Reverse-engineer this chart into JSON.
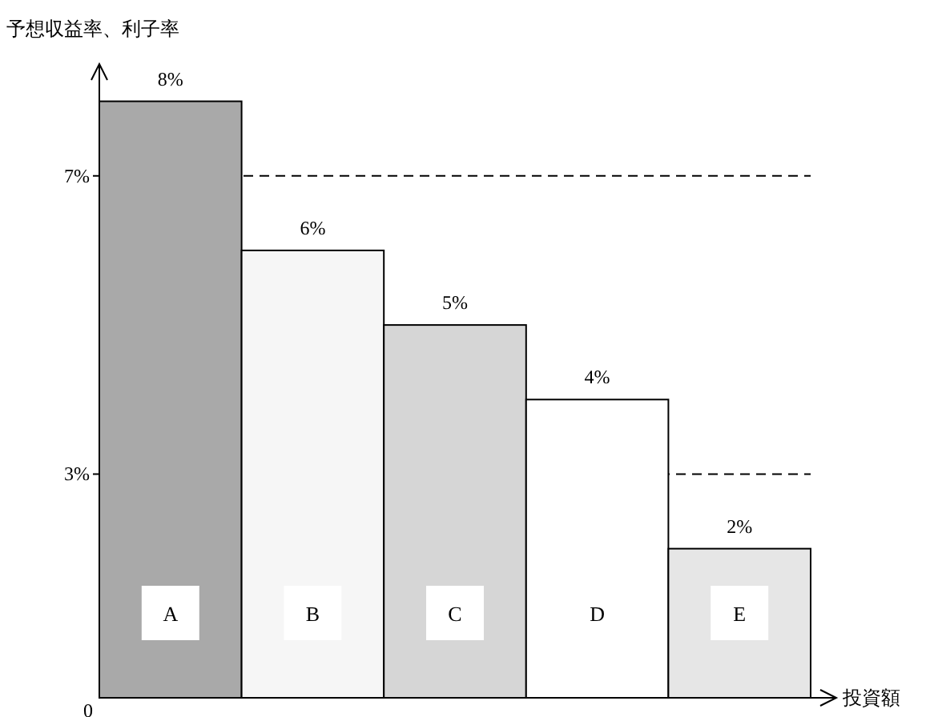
{
  "chart_data": {
    "type": "bar",
    "xlabel": "投資額",
    "ylabel": "予想収益率、利子率",
    "categories": [
      "A",
      "B",
      "C",
      "D",
      "E"
    ],
    "values": [
      8,
      6,
      5,
      4,
      2
    ],
    "colors": [
      "#a9a9a9",
      "#f6f6f6",
      "#d6d6d6",
      "#ffffff",
      "#e6e6e6"
    ],
    "value_labels": [
      "8%",
      "6%",
      "5%",
      "4%",
      "2%"
    ],
    "ylim": [
      0,
      8.5
    ],
    "yticks": [
      {
        "value": 0,
        "label": "0"
      },
      {
        "value": 3,
        "label": "3%"
      },
      {
        "value": 7,
        "label": "7%"
      }
    ],
    "ref_lines": [
      {
        "axis": "y",
        "value": 7,
        "line_style": "dashed"
      },
      {
        "axis": "y",
        "value": 3,
        "line_style": "dashed"
      }
    ]
  }
}
